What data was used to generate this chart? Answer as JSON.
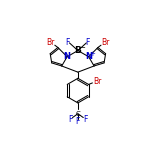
{
  "bg_color": "#ffffff",
  "atom_colors": {
    "Br": "#cc0000",
    "N": "#0000cc",
    "B": "#000000",
    "F": "#0000cc",
    "C": "#000000"
  },
  "figsize": [
    1.52,
    1.52
  ],
  "dpi": 100,
  "lw": 0.75
}
